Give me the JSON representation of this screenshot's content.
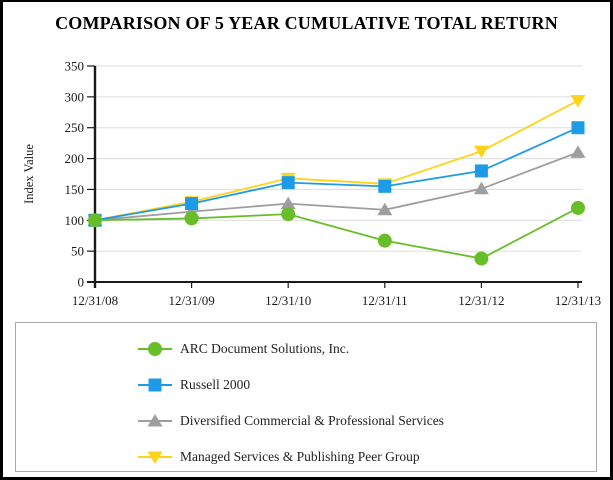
{
  "title": "COMPARISON OF 5 YEAR CUMULATIVE TOTAL RETURN",
  "chart_data": {
    "type": "line",
    "title": "COMPARISON OF 5 YEAR CUMULATIVE TOTAL RETURN",
    "xlabel": "",
    "ylabel": "Index Value",
    "ylim": [
      0,
      350
    ],
    "yticks": [
      0,
      50,
      100,
      150,
      200,
      250,
      300,
      350
    ],
    "grid": true,
    "legend_position": "bottom-box",
    "categories": [
      "12/31/08",
      "12/31/09",
      "12/31/10",
      "12/31/11",
      "12/31/12",
      "12/31/13"
    ],
    "series": [
      {
        "name": "ARC Document Solutions, Inc.",
        "marker": "circle",
        "color": "#68be28",
        "values": [
          100,
          103,
          110,
          67,
          38,
          120
        ]
      },
      {
        "name": "Russell 2000",
        "marker": "square",
        "color": "#1e9be8",
        "values": [
          100,
          127,
          161,
          155,
          180,
          250
        ]
      },
      {
        "name": "Diversified Commercial & Professional Services",
        "marker": "triangle-up",
        "color": "#9e9e9e",
        "values": [
          100,
          114,
          127,
          117,
          151,
          210
        ]
      },
      {
        "name": "Managed Services & Publishing Peer Group",
        "marker": "triangle-down",
        "color": "#ffd317",
        "values": [
          100,
          130,
          168,
          159,
          212,
          294
        ]
      }
    ],
    "colors": {
      "axis": "#1a1a1a",
      "gridline": "#dcdcdc",
      "tick_label": "#1a1a1a"
    }
  }
}
